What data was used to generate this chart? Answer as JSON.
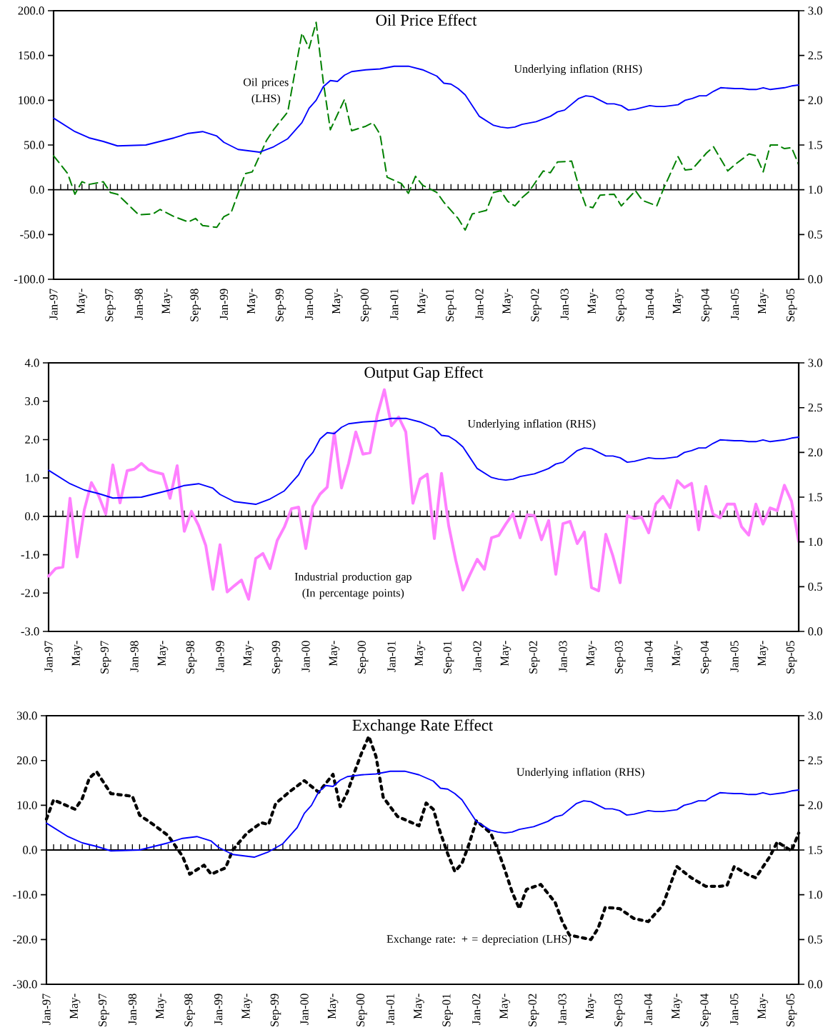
{
  "chart_data": [
    {
      "type": "line",
      "title": "Oil Price Effect",
      "xlim": [
        "1997-01",
        "2005-10"
      ],
      "xticks": [
        {
          "value": "1997-01",
          "label": "Jan-97"
        },
        {
          "value": "1997-05",
          "label": "May-"
        },
        {
          "value": "1997-09",
          "label": "Sep-97"
        },
        {
          "value": "1998-01",
          "label": "Jan-98"
        },
        {
          "value": "1998-05",
          "label": "May-"
        },
        {
          "value": "1998-09",
          "label": "Sep-98"
        },
        {
          "value": "1999-01",
          "label": "Jan-99"
        },
        {
          "value": "1999-05",
          "label": "May-"
        },
        {
          "value": "1999-09",
          "label": "Sep-99"
        },
        {
          "value": "2000-01",
          "label": "Jan-00"
        },
        {
          "value": "2000-05",
          "label": "May-"
        },
        {
          "value": "2000-09",
          "label": "Sep-00"
        },
        {
          "value": "2001-01",
          "label": "Jan-01"
        },
        {
          "value": "2001-05",
          "label": "May-"
        },
        {
          "value": "2001-09",
          "label": "Sep-01"
        },
        {
          "value": "2002-01",
          "label": "Jan-02"
        },
        {
          "value": "2002-05",
          "label": "May-"
        },
        {
          "value": "2002-09",
          "label": "Sep-02"
        },
        {
          "value": "2003-01",
          "label": "Jan-03"
        },
        {
          "value": "2003-05",
          "label": "May-"
        },
        {
          "value": "2003-09",
          "label": "Sep-03"
        },
        {
          "value": "2004-01",
          "label": "Jan-04"
        },
        {
          "value": "2004-05",
          "label": "May-"
        },
        {
          "value": "2004-09",
          "label": "Sep-04"
        },
        {
          "value": "2005-01",
          "label": "Jan-05"
        },
        {
          "value": "2005-05",
          "label": "May-"
        },
        {
          "value": "2005-09",
          "label": "Sep-05"
        }
      ],
      "ylim": [
        -100,
        200
      ],
      "yticks": [
        {
          "value": -100,
          "label": "-100.0"
        },
        {
          "value": -50,
          "label": "-50.0"
        },
        {
          "value": 0,
          "label": "0.0"
        },
        {
          "value": 50,
          "label": "50.0"
        },
        {
          "value": 100,
          "label": "100.0"
        },
        {
          "value": 150,
          "label": "150.0"
        },
        {
          "value": 200,
          "label": "200.0"
        }
      ],
      "y2lim": [
        0,
        3
      ],
      "y2ticks": [
        {
          "value": 0,
          "label": "0.0"
        },
        {
          "value": 0.5,
          "label": "0.5"
        },
        {
          "value": 1,
          "label": "1.0"
        },
        {
          "value": 1.5,
          "label": "1.5"
        },
        {
          "value": 2,
          "label": "2.0"
        },
        {
          "value": 2.5,
          "label": "2.5"
        },
        {
          "value": 3,
          "label": "3.0"
        }
      ],
      "ref_lines": [
        {
          "axis": "y",
          "value": 0
        }
      ],
      "series": [
        {
          "name": "Underlying inflation (RHS)",
          "color": "#0000ff",
          "axis": "y2",
          "line_style": "solid",
          "x": [
            "1997-01",
            "1997-04",
            "1997-06",
            "1997-08",
            "1997-10",
            "1998-02",
            "1998-06",
            "1998-08",
            "1998-10",
            "1998-12",
            "1999-01",
            "1999-03",
            "1999-06",
            "1999-08",
            "1999-10",
            "1999-12",
            "2000-01",
            "2000-02",
            "2000-03",
            "2000-04",
            "2000-05",
            "2000-06",
            "2000-07",
            "2000-09",
            "2000-11",
            "2001-01",
            "2001-03",
            "2001-05",
            "2001-07",
            "2001-08",
            "2001-09",
            "2001-10",
            "2001-11",
            "2001-12",
            "2002-01",
            "2002-03",
            "2002-04",
            "2002-05",
            "2002-06",
            "2002-07",
            "2002-09",
            "2002-11",
            "2002-12",
            "2003-01",
            "2003-03",
            "2003-04",
            "2003-05",
            "2003-06",
            "2003-07",
            "2003-08",
            "2003-09",
            "2003-10",
            "2003-11",
            "2003-12",
            "2004-01",
            "2004-02",
            "2004-03",
            "2004-05",
            "2004-06",
            "2004-07",
            "2004-08",
            "2004-09",
            "2004-10",
            "2004-11",
            "2005-01",
            "2005-02",
            "2005-03",
            "2005-04",
            "2005-05",
            "2005-06",
            "2005-08",
            "2005-09",
            "2005-10"
          ],
          "values": [
            1.8,
            1.65,
            1.58,
            1.54,
            1.49,
            1.5,
            1.58,
            1.63,
            1.65,
            1.6,
            1.53,
            1.45,
            1.42,
            1.48,
            1.57,
            1.75,
            1.91,
            2.0,
            2.15,
            2.22,
            2.21,
            2.28,
            2.32,
            2.34,
            2.35,
            2.38,
            2.38,
            2.34,
            2.27,
            2.19,
            2.18,
            2.13,
            2.06,
            1.94,
            1.82,
            1.72,
            1.7,
            1.69,
            1.7,
            1.73,
            1.76,
            1.82,
            1.87,
            1.89,
            2.02,
            2.05,
            2.04,
            2.0,
            1.96,
            1.96,
            1.94,
            1.89,
            1.9,
            1.92,
            1.94,
            1.93,
            1.93,
            1.95,
            2.0,
            2.02,
            2.05,
            2.05,
            2.1,
            2.14,
            2.13,
            2.13,
            2.12,
            2.12,
            2.14,
            2.12,
            2.14,
            2.16,
            2.17
          ]
        },
        {
          "name": "Oil prices (LHS)",
          "color": "#008000",
          "axis": "y",
          "line_style": "dashed",
          "x": [
            "1997-01",
            "1997-03",
            "1997-04",
            "1997-05",
            "1997-06",
            "1997-08",
            "1997-09",
            "1997-10",
            "1998-01",
            "1998-03",
            "1998-04",
            "1998-06",
            "1998-08",
            "1998-09",
            "1998-10",
            "1998-12",
            "1999-01",
            "1999-02",
            "1999-04",
            "1999-05",
            "1999-07",
            "1999-08",
            "1999-10",
            "1999-12",
            "2000-01",
            "2000-02",
            "2000-03",
            "2000-04",
            "2000-06",
            "2000-07",
            "2000-09",
            "2000-10",
            "2000-11",
            "2000-12",
            "2001-02",
            "2001-03",
            "2001-04",
            "2001-05",
            "2001-07",
            "2001-08",
            "2001-10",
            "2001-11",
            "2001-12",
            "2002-02",
            "2002-03",
            "2002-04",
            "2002-05",
            "2002-06",
            "2002-07",
            "2002-08",
            "2002-10",
            "2002-11",
            "2002-12",
            "2003-02",
            "2003-03",
            "2003-04",
            "2003-05",
            "2003-06",
            "2003-08",
            "2003-09",
            "2003-11",
            "2003-12",
            "2004-02",
            "2004-03",
            "2004-05",
            "2004-06",
            "2004-07",
            "2004-09",
            "2004-10",
            "2004-12",
            "2005-01",
            "2005-03",
            "2005-04",
            "2005-05",
            "2005-06",
            "2005-07",
            "2005-08",
            "2005-09",
            "2005-10"
          ],
          "values": [
            38,
            18,
            -5,
            9,
            6,
            9,
            -3,
            -5,
            -28,
            -27,
            -22,
            -30,
            -36,
            -32,
            -40,
            -42,
            -30,
            -26,
            18,
            20,
            55,
            67,
            87,
            175,
            158,
            187,
            121,
            67,
            101,
            66,
            71,
            75,
            62,
            14,
            7,
            -4,
            15,
            5,
            -3,
            -14,
            -32,
            -45,
            -27,
            -23,
            -3,
            -1,
            -13,
            -18,
            -9,
            -2,
            21,
            19,
            31,
            32,
            4,
            -18,
            -20,
            -6,
            -5,
            -18,
            -1,
            -12,
            -18,
            2,
            37,
            22,
            23,
            41,
            48,
            21,
            28,
            40,
            38,
            20,
            50,
            50,
            46,
            47,
            28
          ]
        }
      ]
    },
    {
      "type": "line",
      "title": "Output Gap Effect",
      "xlim": [
        "1997-01",
        "2005-10"
      ],
      "xticks": [
        {
          "value": "1997-01",
          "label": "Jan-97"
        },
        {
          "value": "1997-05",
          "label": "May-"
        },
        {
          "value": "1997-09",
          "label": "Sep-97"
        },
        {
          "value": "1998-01",
          "label": "Jan-98"
        },
        {
          "value": "1998-05",
          "label": "May-"
        },
        {
          "value": "1998-09",
          "label": "Sep-98"
        },
        {
          "value": "1999-01",
          "label": "Jan-99"
        },
        {
          "value": "1999-05",
          "label": "May-"
        },
        {
          "value": "1999-09",
          "label": "Sep-99"
        },
        {
          "value": "2000-01",
          "label": "Jan-00"
        },
        {
          "value": "2000-05",
          "label": "May-"
        },
        {
          "value": "2000-09",
          "label": "Sep-00"
        },
        {
          "value": "2001-01",
          "label": "Jan-01"
        },
        {
          "value": "2001-05",
          "label": "May-"
        },
        {
          "value": "2001-09",
          "label": "Sep-01"
        },
        {
          "value": "2002-01",
          "label": "Jan-02"
        },
        {
          "value": "2002-05",
          "label": "May-"
        },
        {
          "value": "2002-09",
          "label": "Sep-02"
        },
        {
          "value": "2003-01",
          "label": "Jan-03"
        },
        {
          "value": "2003-05",
          "label": "May-"
        },
        {
          "value": "2003-09",
          "label": "Sep-03"
        },
        {
          "value": "2004-01",
          "label": "Jan-04"
        },
        {
          "value": "2004-05",
          "label": "May-"
        },
        {
          "value": "2004-09",
          "label": "Sep-04"
        },
        {
          "value": "2005-01",
          "label": "Jan-05"
        },
        {
          "value": "2005-05",
          "label": "May-"
        },
        {
          "value": "2005-09",
          "label": "Sep-05"
        }
      ],
      "ylim": [
        -3,
        4
      ],
      "yticks": [
        {
          "value": -3,
          "label": "-3.0"
        },
        {
          "value": -2,
          "label": "-2.0"
        },
        {
          "value": -1,
          "label": "-1.0"
        },
        {
          "value": 0,
          "label": "0.0"
        },
        {
          "value": 1,
          "label": "1.0"
        },
        {
          "value": 2,
          "label": "2.0"
        },
        {
          "value": 3,
          "label": "3.0"
        },
        {
          "value": 4,
          "label": "4.0"
        }
      ],
      "y2lim": [
        0,
        3
      ],
      "y2ticks": [
        {
          "value": 0,
          "label": "0.0"
        },
        {
          "value": 0.5,
          "label": "0.5"
        },
        {
          "value": 1,
          "label": "1.0"
        },
        {
          "value": 1.5,
          "label": "1.5"
        },
        {
          "value": 2,
          "label": "2.0"
        },
        {
          "value": 2.5,
          "label": "2.5"
        },
        {
          "value": 3,
          "label": "3.0"
        }
      ],
      "ref_lines": [
        {
          "axis": "y",
          "value": 0
        }
      ],
      "x": [
        "1997-01",
        "1997-02",
        "1997-03",
        "1997-04",
        "1997-05",
        "1997-06",
        "1997-07",
        "1997-08",
        "1997-09",
        "1997-10",
        "1997-11",
        "1997-12",
        "1998-01",
        "1998-02",
        "1998-03",
        "1998-04",
        "1998-05",
        "1998-06",
        "1998-07",
        "1998-08",
        "1998-09",
        "1998-10",
        "1998-11",
        "1998-12",
        "1999-01",
        "1999-02",
        "1999-03",
        "1999-04",
        "1999-05",
        "1999-06",
        "1999-07",
        "1999-08",
        "1999-09",
        "1999-10",
        "1999-11",
        "1999-12",
        "2000-01",
        "2000-02",
        "2000-03",
        "2000-04",
        "2000-05",
        "2000-06",
        "2000-07",
        "2000-08",
        "2000-09",
        "2000-10",
        "2000-11",
        "2000-12",
        "2001-01",
        "2001-02",
        "2001-03",
        "2001-04",
        "2001-05",
        "2001-06",
        "2001-07",
        "2001-08",
        "2001-09",
        "2001-10",
        "2001-11",
        "2001-12",
        "2002-01",
        "2002-02",
        "2002-03",
        "2002-04",
        "2002-05",
        "2002-06",
        "2002-07",
        "2002-08",
        "2002-09",
        "2002-10",
        "2002-11",
        "2002-12",
        "2003-01",
        "2003-02",
        "2003-03",
        "2003-04",
        "2003-05",
        "2003-06",
        "2003-07",
        "2003-08",
        "2003-09",
        "2003-10",
        "2003-11",
        "2003-12",
        "2004-01",
        "2004-02",
        "2004-03",
        "2004-04",
        "2004-05",
        "2004-06",
        "2004-07",
        "2004-08",
        "2004-09",
        "2004-10",
        "2004-11",
        "2004-12",
        "2005-01",
        "2005-02",
        "2005-03",
        "2005-04",
        "2005-05",
        "2005-06",
        "2005-07",
        "2005-08",
        "2005-09",
        "2005-10"
      ],
      "series": [
        {
          "name": "Underlying inflation (RHS)",
          "color": "#0000ff",
          "axis": "y2",
          "line_style": "solid",
          "x": [
            "1997-01",
            "1997-04",
            "1997-06",
            "1997-08",
            "1997-10",
            "1998-02",
            "1998-06",
            "1998-08",
            "1998-10",
            "1998-12",
            "1999-01",
            "1999-03",
            "1999-06",
            "1999-08",
            "1999-10",
            "1999-12",
            "2000-01",
            "2000-02",
            "2000-03",
            "2000-04",
            "2000-05",
            "2000-06",
            "2000-07",
            "2000-09",
            "2000-11",
            "2001-01",
            "2001-03",
            "2001-05",
            "2001-07",
            "2001-08",
            "2001-09",
            "2001-10",
            "2001-11",
            "2001-12",
            "2002-01",
            "2002-03",
            "2002-04",
            "2002-05",
            "2002-06",
            "2002-07",
            "2002-09",
            "2002-11",
            "2002-12",
            "2003-01",
            "2003-03",
            "2003-04",
            "2003-05",
            "2003-06",
            "2003-07",
            "2003-08",
            "2003-09",
            "2003-10",
            "2003-11",
            "2003-12",
            "2004-01",
            "2004-02",
            "2004-03",
            "2004-05",
            "2004-06",
            "2004-07",
            "2004-08",
            "2004-09",
            "2004-10",
            "2004-11",
            "2005-01",
            "2005-02",
            "2005-03",
            "2005-04",
            "2005-05",
            "2005-06",
            "2005-08",
            "2005-09",
            "2005-10"
          ],
          "values": [
            1.8,
            1.65,
            1.58,
            1.54,
            1.49,
            1.5,
            1.58,
            1.63,
            1.65,
            1.6,
            1.53,
            1.45,
            1.42,
            1.48,
            1.57,
            1.75,
            1.91,
            2.0,
            2.15,
            2.22,
            2.21,
            2.28,
            2.32,
            2.34,
            2.35,
            2.38,
            2.38,
            2.34,
            2.27,
            2.19,
            2.18,
            2.13,
            2.06,
            1.94,
            1.82,
            1.72,
            1.7,
            1.69,
            1.7,
            1.73,
            1.76,
            1.82,
            1.87,
            1.89,
            2.02,
            2.05,
            2.04,
            2.0,
            1.96,
            1.96,
            1.94,
            1.89,
            1.9,
            1.92,
            1.94,
            1.93,
            1.93,
            1.95,
            2.0,
            2.02,
            2.05,
            2.05,
            2.1,
            2.14,
            2.13,
            2.13,
            2.12,
            2.12,
            2.14,
            2.12,
            2.14,
            2.16,
            2.17
          ]
        },
        {
          "name": "Industrial production gap (In percentage points)",
          "color": "#ff80ff",
          "axis": "y",
          "line_style": "solid",
          "values": [
            -1.56,
            -1.36,
            -1.32,
            0.47,
            -1.06,
            0.17,
            0.88,
            0.54,
            0.06,
            1.34,
            0.35,
            1.19,
            1.23,
            1.38,
            1.21,
            1.15,
            1.1,
            0.47,
            1.32,
            -0.39,
            0.13,
            -0.24,
            -0.76,
            -1.9,
            -0.74,
            -1.97,
            -1.81,
            -1.66,
            -2.16,
            -1.1,
            -0.97,
            -1.36,
            -0.63,
            -0.28,
            0.2,
            0.24,
            -0.84,
            0.26,
            0.58,
            0.76,
            2.18,
            0.74,
            1.38,
            2.2,
            1.62,
            1.66,
            2.63,
            3.3,
            2.36,
            2.59,
            2.2,
            0.34,
            0.97,
            1.1,
            -0.58,
            1.12,
            -0.24,
            -1.15,
            -1.92,
            -1.51,
            -1.12,
            -1.38,
            -0.56,
            -0.5,
            -0.2,
            0.07,
            -0.56,
            0.04,
            0.02,
            -0.61,
            -0.11,
            -1.51,
            -0.19,
            -0.13,
            -0.71,
            -0.41,
            -1.86,
            -1.94,
            -0.47,
            -1.04,
            -1.73,
            0.02,
            -0.06,
            -0.02,
            -0.43,
            0.32,
            0.52,
            0.22,
            0.93,
            0.75,
            0.86,
            -0.35,
            0.78,
            0.06,
            -0.04,
            0.32,
            0.32,
            -0.27,
            -0.49,
            0.32,
            -0.2,
            0.22,
            0.15,
            0.81,
            0.39,
            -0.65
          ]
        }
      ]
    },
    {
      "type": "line",
      "title": "Exchange Rate Effect",
      "xlim": [
        "1997-01",
        "2005-10"
      ],
      "xticks": [
        {
          "value": "1997-01",
          "label": "Jan-97"
        },
        {
          "value": "1997-05",
          "label": "May-"
        },
        {
          "value": "1997-09",
          "label": "Sep-97"
        },
        {
          "value": "1998-01",
          "label": "Jan-98"
        },
        {
          "value": "1998-05",
          "label": "May-"
        },
        {
          "value": "1998-09",
          "label": "Sep-98"
        },
        {
          "value": "1999-01",
          "label": "Jan-99"
        },
        {
          "value": "1999-05",
          "label": "May-"
        },
        {
          "value": "1999-09",
          "label": "Sep-99"
        },
        {
          "value": "2000-01",
          "label": "Jan-00"
        },
        {
          "value": "2000-05",
          "label": "May-"
        },
        {
          "value": "2000-09",
          "label": "Sep-00"
        },
        {
          "value": "2001-01",
          "label": "Jan-01"
        },
        {
          "value": "2001-05",
          "label": "May-"
        },
        {
          "value": "2001-09",
          "label": "Sep-01"
        },
        {
          "value": "2002-01",
          "label": "Jan-02"
        },
        {
          "value": "2002-05",
          "label": "May-"
        },
        {
          "value": "2002-09",
          "label": "Sep-02"
        },
        {
          "value": "2003-01",
          "label": "Jan-03"
        },
        {
          "value": "2003-05",
          "label": "May-"
        },
        {
          "value": "2003-09",
          "label": "Sep-03"
        },
        {
          "value": "2004-01",
          "label": "Jan-04"
        },
        {
          "value": "2004-05",
          "label": "May-"
        },
        {
          "value": "2004-09",
          "label": "Sep-04"
        },
        {
          "value": "2005-01",
          "label": "Jan-05"
        },
        {
          "value": "2005-05",
          "label": "May-"
        },
        {
          "value": "2005-09",
          "label": "Sep-05"
        }
      ],
      "ylim": [
        -30,
        30
      ],
      "yticks": [
        {
          "value": -30,
          "label": "-30.0"
        },
        {
          "value": -20,
          "label": "-20.0"
        },
        {
          "value": -10,
          "label": "-10.0"
        },
        {
          "value": 0,
          "label": "0.0"
        },
        {
          "value": 10,
          "label": "10.0"
        },
        {
          "value": 20,
          "label": "20.0"
        },
        {
          "value": 30,
          "label": "30.0"
        }
      ],
      "y2lim": [
        0,
        3
      ],
      "y2ticks": [
        {
          "value": 0,
          "label": "0.0"
        },
        {
          "value": 0.5,
          "label": "0.5"
        },
        {
          "value": 1,
          "label": "1.0"
        },
        {
          "value": 1.5,
          "label": "1.5"
        },
        {
          "value": 2,
          "label": "2.0"
        },
        {
          "value": 2.5,
          "label": "2.5"
        },
        {
          "value": 3,
          "label": "3.0"
        }
      ],
      "ref_lines": [
        {
          "axis": "y",
          "value": 0
        }
      ],
      "series": [
        {
          "name": "Underlying inflation (RHS)",
          "color": "#0000ff",
          "axis": "y2",
          "line_style": "solid",
          "x": [
            "1997-01",
            "1997-04",
            "1997-06",
            "1997-08",
            "1997-10",
            "1998-02",
            "1998-06",
            "1998-08",
            "1998-10",
            "1998-12",
            "1999-01",
            "1999-03",
            "1999-06",
            "1999-08",
            "1999-10",
            "1999-12",
            "2000-01",
            "2000-02",
            "2000-03",
            "2000-04",
            "2000-05",
            "2000-06",
            "2000-07",
            "2000-09",
            "2000-11",
            "2001-01",
            "2001-03",
            "2001-05",
            "2001-07",
            "2001-08",
            "2001-09",
            "2001-10",
            "2001-11",
            "2001-12",
            "2002-01",
            "2002-03",
            "2002-04",
            "2002-05",
            "2002-06",
            "2002-07",
            "2002-09",
            "2002-11",
            "2002-12",
            "2003-01",
            "2003-03",
            "2003-04",
            "2003-05",
            "2003-06",
            "2003-07",
            "2003-08",
            "2003-09",
            "2003-10",
            "2003-11",
            "2003-12",
            "2004-01",
            "2004-02",
            "2004-03",
            "2004-05",
            "2004-06",
            "2004-07",
            "2004-08",
            "2004-09",
            "2004-10",
            "2004-11",
            "2005-01",
            "2005-02",
            "2005-03",
            "2005-04",
            "2005-05",
            "2005-06",
            "2005-08",
            "2005-09",
            "2005-10"
          ],
          "values": [
            1.8,
            1.65,
            1.58,
            1.54,
            1.49,
            1.5,
            1.58,
            1.63,
            1.65,
            1.6,
            1.53,
            1.45,
            1.42,
            1.48,
            1.57,
            1.75,
            1.91,
            2.0,
            2.15,
            2.22,
            2.21,
            2.28,
            2.32,
            2.34,
            2.35,
            2.38,
            2.38,
            2.34,
            2.27,
            2.19,
            2.18,
            2.13,
            2.06,
            1.94,
            1.82,
            1.72,
            1.7,
            1.69,
            1.7,
            1.73,
            1.76,
            1.82,
            1.87,
            1.89,
            2.02,
            2.05,
            2.04,
            2.0,
            1.96,
            1.96,
            1.94,
            1.89,
            1.9,
            1.92,
            1.94,
            1.93,
            1.93,
            1.95,
            2.0,
            2.02,
            2.05,
            2.05,
            2.1,
            2.14,
            2.13,
            2.13,
            2.12,
            2.12,
            2.14,
            2.12,
            2.14,
            2.16,
            2.17
          ]
        },
        {
          "name": "Exchange rate: + = depreciation (LHS)",
          "color": "#000000",
          "axis": "y",
          "line_style": "dotted",
          "x": [
            "1997-01",
            "1997-02",
            "1997-05",
            "1997-06",
            "1997-07",
            "1997-08",
            "1997-10",
            "1998-01",
            "1998-02",
            "1998-04",
            "1998-06",
            "1998-08",
            "1998-09",
            "1998-11",
            "1998-12",
            "1999-02",
            "1999-03",
            "1999-05",
            "1999-07",
            "1999-08",
            "1999-09",
            "1999-11",
            "2000-01",
            "2000-03",
            "2000-05",
            "2000-06",
            "2000-07",
            "2000-08",
            "2000-09",
            "2000-10",
            "2000-11",
            "2000-12",
            "2001-02",
            "2001-04",
            "2001-05",
            "2001-06",
            "2001-07",
            "2001-08",
            "2001-09",
            "2001-10",
            "2001-11",
            "2001-12",
            "2002-01",
            "2002-03",
            "2002-04",
            "2002-05",
            "2002-06",
            "2002-07",
            "2002-08",
            "2002-10",
            "2002-12",
            "2003-01",
            "2003-02",
            "2003-05",
            "2003-06",
            "2003-07",
            "2003-09",
            "2003-11",
            "2004-01",
            "2004-03",
            "2004-04",
            "2004-05",
            "2004-07",
            "2004-09",
            "2004-11",
            "2004-12",
            "2005-01",
            "2005-03",
            "2005-04",
            "2005-06",
            "2005-07",
            "2005-09",
            "2005-10"
          ],
          "values": [
            6.9,
            11.2,
            9.1,
            11.5,
            16.1,
            17.5,
            12.6,
            12.0,
            7.8,
            5.6,
            3.2,
            -1.4,
            -5.4,
            -3.4,
            -5.4,
            -4.0,
            0.0,
            3.8,
            6.1,
            5.7,
            10.4,
            13.1,
            15.5,
            12.9,
            16.9,
            9.7,
            12.9,
            17.4,
            21.7,
            25.4,
            20.9,
            11.8,
            7.5,
            6.1,
            5.4,
            10.5,
            9.1,
            3.8,
            -0.8,
            -4.8,
            -3.0,
            1.4,
            6.5,
            3.8,
            0.0,
            -4.5,
            -9.4,
            -13.1,
            -8.8,
            -7.7,
            -11.7,
            -16.0,
            -19.0,
            -20.0,
            -17.5,
            -12.8,
            -13.1,
            -15.3,
            -16.0,
            -12.4,
            -8.1,
            -3.7,
            -6.2,
            -8.1,
            -8.1,
            -7.9,
            -3.7,
            -5.6,
            -6.2,
            -1.4,
            1.8,
            -0.2,
            3.8
          ]
        }
      ]
    }
  ]
}
